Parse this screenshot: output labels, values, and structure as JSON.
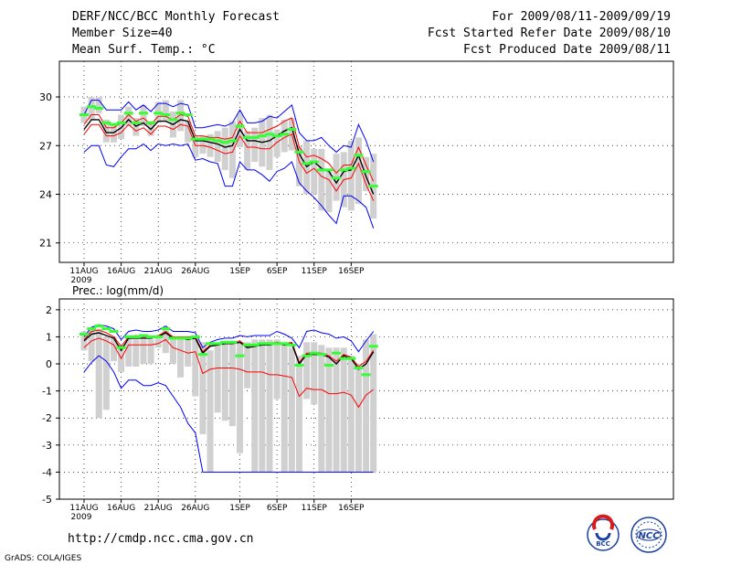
{
  "header": {
    "title": "DERF/NCC/BCC Monthly Forecast",
    "member_size": "Member Size=40",
    "variable": "Mean Surf. Temp.: °C",
    "period": "For 2009/08/11-2009/09/19",
    "fcst_started": "Fcst Started Refer Date 2009/08/10",
    "fcst_produced": "Fcst Produced Date 2009/08/11"
  },
  "footer": {
    "url": "http://cmdp.ncc.cma.gov.cn",
    "grads": "GrADS: COLA/IGES",
    "logo_left_text": "BCC",
    "logo_right_text": "NCC"
  },
  "colors": {
    "envelope": "#0000ff",
    "spread": "#ff0000",
    "mean": "#000000",
    "bars": "#d0d0d0",
    "green": "#33ff33",
    "grid": "#000000"
  },
  "chart_data": [
    {
      "type": "line",
      "title": "Mean Surf. Temp.: °C",
      "xlabel": "",
      "ylabel": "°C",
      "x_ticks": [
        "11AUG",
        "16AUG",
        "21AUG",
        "26AUG",
        "1SEP",
        "6SEP",
        "11SEP",
        "16SEP"
      ],
      "x_tick_days": [
        0,
        5,
        10,
        15,
        21,
        26,
        31,
        36
      ],
      "x_sublabel": "2009",
      "ylim": [
        19.8,
        32.2
      ],
      "y_ticks": [
        21,
        24,
        27,
        30
      ],
      "y_tick_labels": [
        "21",
        "24",
        "27",
        "30"
      ],
      "days": 39,
      "series": [
        {
          "name": "max",
          "color": "#0000ff",
          "values": [
            28.9,
            29.8,
            29.8,
            29.2,
            29.2,
            29.2,
            29.7,
            29.2,
            29.5,
            29.1,
            29.6,
            29.6,
            29.4,
            29.6,
            29.5,
            28.1,
            28.1,
            28.2,
            28.3,
            28.2,
            28.4,
            29.2,
            28.4,
            28.4,
            28.5,
            28.8,
            28.7,
            29.1,
            29.5,
            27.8,
            27.3,
            27.3,
            27.5,
            27.0,
            26.6,
            27.0,
            26.9,
            28.3,
            27.3,
            26.0
          ]
        },
        {
          "name": "upper",
          "color": "#ff0000",
          "values": [
            28.3,
            28.9,
            28.9,
            28.1,
            28.1,
            28.4,
            28.9,
            28.5,
            28.7,
            28.3,
            28.8,
            28.8,
            28.6,
            28.9,
            28.8,
            27.6,
            27.6,
            27.5,
            27.5,
            27.4,
            27.5,
            28.5,
            27.8,
            27.8,
            27.8,
            28.0,
            28.2,
            28.5,
            28.7,
            26.9,
            26.3,
            26.4,
            26.2,
            25.9,
            25.3,
            25.8,
            25.8,
            26.9,
            25.8,
            24.8
          ]
        },
        {
          "name": "mean",
          "color": "#000000",
          "values": [
            28.0,
            28.6,
            28.6,
            27.8,
            27.8,
            28.1,
            28.6,
            28.2,
            28.4,
            28.0,
            28.5,
            28.5,
            28.3,
            28.6,
            28.5,
            27.3,
            27.3,
            27.2,
            27.1,
            26.9,
            27.0,
            28.0,
            27.3,
            27.3,
            27.2,
            27.3,
            27.6,
            27.9,
            28.1,
            26.5,
            25.7,
            26.0,
            25.6,
            25.4,
            24.7,
            25.4,
            25.5,
            26.4,
            25.1,
            24.0
          ]
        },
        {
          "name": "lower",
          "color": "#ff0000",
          "values": [
            27.7,
            28.3,
            28.3,
            27.6,
            27.6,
            27.8,
            28.3,
            27.9,
            28.1,
            27.7,
            28.2,
            28.2,
            28.0,
            28.3,
            28.2,
            27.0,
            27.0,
            26.9,
            26.7,
            26.5,
            26.6,
            27.6,
            26.9,
            26.9,
            26.8,
            26.8,
            27.2,
            27.5,
            27.7,
            26.0,
            25.3,
            25.6,
            25.1,
            24.9,
            24.2,
            24.9,
            25.0,
            25.9,
            24.6,
            23.6
          ]
        },
        {
          "name": "min",
          "color": "#0000ff",
          "values": [
            26.6,
            27.0,
            27.0,
            25.8,
            25.7,
            26.3,
            26.8,
            26.8,
            27.1,
            26.7,
            27.1,
            27.0,
            27.1,
            27.0,
            27.1,
            26.1,
            26.2,
            26.0,
            25.9,
            24.5,
            24.5,
            26.0,
            25.5,
            25.5,
            25.2,
            24.8,
            25.4,
            25.6,
            26.0,
            24.7,
            24.2,
            23.8,
            23.3,
            22.7,
            22.2,
            23.9,
            23.9,
            23.6,
            23.2,
            21.9
          ]
        }
      ],
      "bars": [
        [
          28.4,
          29.4
        ],
        [
          28.6,
          30.0
        ],
        [
          29.0,
          30.0
        ],
        [
          27.2,
          28.6
        ],
        [
          27.2,
          28.3
        ],
        [
          27.4,
          28.9
        ],
        [
          28.2,
          29.4
        ],
        [
          27.6,
          28.7
        ],
        [
          28.2,
          29.5
        ],
        [
          27.6,
          28.5
        ],
        [
          28.4,
          29.7
        ],
        [
          28.5,
          29.8
        ],
        [
          27.5,
          29.1
        ],
        [
          27.9,
          29.8
        ],
        [
          27.2,
          28.5
        ],
        [
          26.3,
          27.6
        ],
        [
          26.5,
          27.6
        ],
        [
          26.3,
          27.7
        ],
        [
          26.0,
          27.9
        ],
        [
          25.5,
          28.1
        ],
        [
          25.0,
          28.5
        ],
        [
          26.9,
          29.0
        ],
        [
          25.5,
          27.9
        ],
        [
          26.0,
          28.1
        ],
        [
          25.7,
          28.7
        ],
        [
          25.5,
          28.9
        ],
        [
          26.3,
          28.0
        ],
        [
          26.6,
          28.6
        ],
        [
          26.7,
          28.7
        ],
        [
          24.5,
          27.0
        ],
        [
          24.0,
          27.3
        ],
        [
          24.0,
          26.8
        ],
        [
          23.0,
          26.8
        ],
        [
          22.9,
          25.4
        ],
        [
          23.6,
          26.5
        ],
        [
          23.2,
          26.6
        ],
        [
          23.0,
          27.3
        ],
        [
          23.4,
          27.5
        ],
        [
          24.2,
          26.3
        ],
        [
          22.5,
          26.5
        ]
      ],
      "green": [
        28.9,
        29.4,
        29.3,
        28.4,
        28.3,
        28.4,
        29.0,
        28.4,
        29.0,
        28.4,
        29.0,
        28.9,
        28.6,
        29.0,
        28.9,
        27.4,
        27.4,
        27.4,
        27.3,
        27.2,
        27.3,
        28.2,
        27.5,
        27.5,
        27.6,
        27.7,
        27.6,
        27.7,
        28.0,
        26.6,
        25.9,
        26.0,
        25.5,
        25.5,
        25.0,
        25.5,
        25.6,
        26.4,
        25.4,
        24.5
      ]
    },
    {
      "type": "line",
      "title": "Prec.: log(mm/d)",
      "xlabel": "",
      "ylabel": "log(mm/d)",
      "x_ticks": [
        "11AUG",
        "16AUG",
        "21AUG",
        "26AUG",
        "1SEP",
        "6SEP",
        "11SEP",
        "16SEP"
      ],
      "x_tick_days": [
        0,
        5,
        10,
        15,
        21,
        26,
        31,
        36
      ],
      "x_sublabel": "2009",
      "ylim": [
        -5,
        2.4
      ],
      "y_ticks": [
        -5,
        -4,
        -3,
        -2,
        -1,
        0,
        1,
        2
      ],
      "y_tick_labels": [
        "-5",
        "-4",
        "-3",
        "-2",
        "-1",
        "0",
        "1",
        "2"
      ],
      "days": 39,
      "series": [
        {
          "name": "max",
          "color": "#0000ff",
          "values": [
            1.0,
            1.35,
            1.45,
            1.4,
            1.3,
            0.9,
            1.2,
            1.25,
            1.2,
            1.2,
            1.25,
            1.4,
            1.2,
            1.2,
            1.2,
            1.15,
            0.6,
            0.8,
            0.9,
            0.95,
            0.95,
            1.05,
            1.0,
            1.05,
            1.05,
            1.05,
            1.2,
            1.1,
            0.95,
            0.6,
            1.2,
            1.25,
            1.15,
            1.1,
            0.95,
            1.0,
            0.85,
            0.45,
            0.85,
            1.2
          ]
        },
        {
          "name": "mean",
          "color": "#000000",
          "values": [
            0.85,
            1.1,
            1.15,
            1.05,
            0.95,
            0.5,
            0.95,
            0.95,
            0.95,
            0.95,
            1.0,
            1.15,
            0.95,
            0.95,
            0.9,
            0.95,
            0.4,
            0.65,
            0.7,
            0.75,
            0.75,
            0.8,
            0.6,
            0.65,
            0.7,
            0.7,
            0.75,
            0.7,
            0.75,
            0.0,
            0.35,
            0.35,
            0.35,
            0.25,
            0.0,
            0.3,
            0.2,
            -0.2,
            0.0,
            0.45
          ]
        },
        {
          "name": "upper",
          "color": "#ff0000",
          "values": [
            0.9,
            1.2,
            1.25,
            1.15,
            1.0,
            0.65,
            1.0,
            1.05,
            1.0,
            1.0,
            1.05,
            1.2,
            1.0,
            1.0,
            1.0,
            1.0,
            0.45,
            0.7,
            0.75,
            0.8,
            0.8,
            0.85,
            0.65,
            0.7,
            0.75,
            0.75,
            0.8,
            0.75,
            0.8,
            0.05,
            0.4,
            0.4,
            0.4,
            0.3,
            0.1,
            0.35,
            0.25,
            -0.1,
            0.1,
            0.5
          ]
        },
        {
          "name": "lower",
          "color": "#ff0000",
          "values": [
            0.6,
            0.85,
            0.95,
            0.85,
            0.7,
            0.2,
            0.7,
            0.7,
            0.7,
            0.7,
            0.75,
            0.9,
            0.6,
            0.5,
            0.4,
            0.45,
            -0.35,
            -0.2,
            -0.15,
            -0.15,
            -0.15,
            -0.2,
            -0.3,
            -0.3,
            -0.3,
            -0.4,
            -0.4,
            -0.45,
            -0.5,
            -1.2,
            -0.9,
            -0.95,
            -0.95,
            -1.1,
            -1.1,
            -1.05,
            -1.15,
            -1.6,
            -1.15,
            -0.95
          ]
        },
        {
          "name": "min",
          "color": "#0000ff",
          "values": [
            -0.3,
            0.05,
            0.3,
            0.1,
            -0.3,
            -0.9,
            -0.6,
            -0.6,
            -0.8,
            -0.8,
            -0.7,
            -0.8,
            -1.2,
            -1.6,
            -2.2,
            -2.55,
            -4.0,
            -4.0,
            -4.0,
            -4.0,
            -4.0,
            -4.0,
            -4.0,
            -4.0,
            -4.0,
            -4.0,
            -4.0,
            -4.0,
            -4.0,
            -4.0,
            -4.0,
            -4.0,
            -4.0,
            -4.0,
            -4.0,
            -4.0,
            -4.0,
            -4.0,
            -4.0,
            -4.0
          ]
        }
      ],
      "bars": [
        [
          0.5,
          1.2
        ],
        [
          0.1,
          1.3
        ],
        [
          -2.0,
          1.3
        ],
        [
          -1.7,
          1.0
        ],
        [
          0.1,
          1.0
        ],
        [
          -0.3,
          0.7
        ],
        [
          -0.1,
          1.0
        ],
        [
          -0.1,
          0.9
        ],
        [
          0.0,
          0.9
        ],
        [
          0.0,
          0.9
        ],
        [
          0.6,
          1.0
        ],
        [
          0.4,
          1.3
        ],
        [
          0.0,
          1.0
        ],
        [
          -0.5,
          1.0
        ],
        [
          -0.1,
          1.0
        ],
        [
          -1.2,
          0.9
        ],
        [
          -2.6,
          0.8
        ],
        [
          -4.0,
          0.5
        ],
        [
          -1.8,
          0.7
        ],
        [
          -2.1,
          0.8
        ],
        [
          -2.3,
          0.8
        ],
        [
          -3.3,
          0.8
        ],
        [
          -0.9,
          0.8
        ],
        [
          -4.0,
          0.9
        ],
        [
          -4.0,
          0.9
        ],
        [
          -4.0,
          0.9
        ],
        [
          -1.3,
          0.9
        ],
        [
          -4.0,
          0.8
        ],
        [
          -4.0,
          0.6
        ],
        [
          -4.0,
          0.3
        ],
        [
          -1.3,
          0.8
        ],
        [
          -1.5,
          0.8
        ],
        [
          -4.0,
          0.7
        ],
        [
          -4.0,
          0.6
        ],
        [
          -4.0,
          0.6
        ],
        [
          -4.0,
          0.6
        ],
        [
          -4.0,
          0.3
        ],
        [
          -4.0,
          0.0
        ],
        [
          -4.0,
          0.9
        ],
        [
          -4.0,
          1.1
        ]
      ],
      "green": [
        1.1,
        1.3,
        1.4,
        1.3,
        1.2,
        0.6,
        1.0,
        1.0,
        1.05,
        1.0,
        1.0,
        1.3,
        0.95,
        0.95,
        0.95,
        1.0,
        0.35,
        0.75,
        0.75,
        0.8,
        0.8,
        0.3,
        0.7,
        0.7,
        0.75,
        0.75,
        0.75,
        0.75,
        0.7,
        -0.05,
        0.3,
        0.4,
        0.35,
        -0.05,
        0.4,
        0.2,
        0.2,
        -0.15,
        -0.4,
        0.65
      ]
    }
  ]
}
